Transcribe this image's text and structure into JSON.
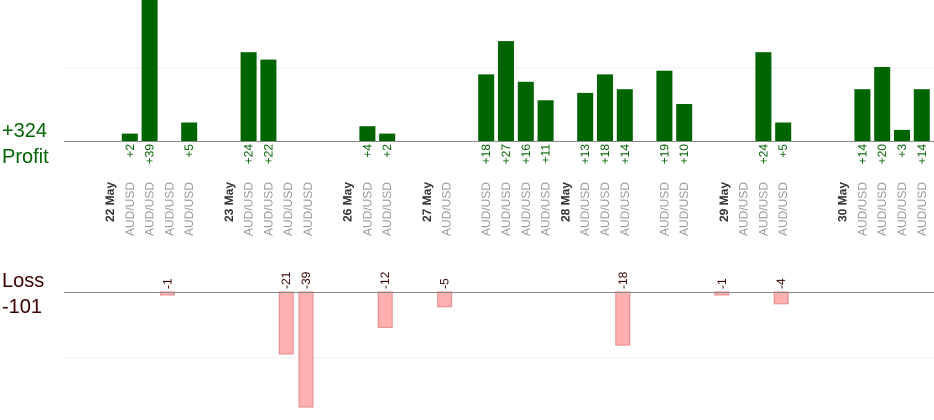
{
  "chart_data": {
    "type": "bar",
    "profit": {
      "label": "Profit",
      "total": "+324",
      "color": "#006400",
      "ylim": [
        0,
        39
      ],
      "bars": [
        {
          "slot": 1,
          "value": 2,
          "label": "+2"
        },
        {
          "slot": 2,
          "value": 39,
          "label": "+39"
        },
        {
          "slot": 4,
          "value": 5,
          "label": "+5"
        },
        {
          "slot": 7,
          "value": 24,
          "label": "+24"
        },
        {
          "slot": 8,
          "value": 22,
          "label": "+22"
        },
        {
          "slot": 13,
          "value": 4,
          "label": "+4"
        },
        {
          "slot": 14,
          "value": 2,
          "label": "+2"
        },
        {
          "slot": 19,
          "value": 18,
          "label": "+18"
        },
        {
          "slot": 20,
          "value": 27,
          "label": "+27"
        },
        {
          "slot": 21,
          "value": 16,
          "label": "+16"
        },
        {
          "slot": 22,
          "value": 11,
          "label": "+11"
        },
        {
          "slot": 24,
          "value": 13,
          "label": "+13"
        },
        {
          "slot": 25,
          "value": 18,
          "label": "+18"
        },
        {
          "slot": 26,
          "value": 14,
          "label": "+14"
        },
        {
          "slot": 28,
          "value": 19,
          "label": "+19"
        },
        {
          "slot": 29,
          "value": 10,
          "label": "+10"
        },
        {
          "slot": 33,
          "value": 24,
          "label": "+24"
        },
        {
          "slot": 34,
          "value": 5,
          "label": "+5"
        },
        {
          "slot": 38,
          "value": 14,
          "label": "+14"
        },
        {
          "slot": 39,
          "value": 20,
          "label": "+20"
        },
        {
          "slot": 40,
          "value": 3,
          "label": "+3"
        },
        {
          "slot": 41,
          "value": 14,
          "label": "+14"
        }
      ]
    },
    "loss": {
      "label": "Loss",
      "total": "-101",
      "color": "#ffb0b0",
      "ylim": [
        -39,
        0
      ],
      "bars": [
        {
          "slot": 3,
          "value": -1,
          "label": "-1"
        },
        {
          "slot": 9,
          "value": -21,
          "label": "-21"
        },
        {
          "slot": 10,
          "value": -39,
          "label": "-39"
        },
        {
          "slot": 14,
          "value": -12,
          "label": "-12"
        },
        {
          "slot": 17,
          "value": -5,
          "label": "-5"
        },
        {
          "slot": 26,
          "value": -18,
          "label": "-18"
        },
        {
          "slot": 31,
          "value": -1,
          "label": "-1"
        },
        {
          "slot": 34,
          "value": -4,
          "label": "-4"
        }
      ]
    },
    "categories": [
      {
        "slot": 0,
        "text": "22 May",
        "kind": "date"
      },
      {
        "slot": 1,
        "text": "AUD/USD",
        "kind": "pair"
      },
      {
        "slot": 2,
        "text": "AUD/USD",
        "kind": "pair"
      },
      {
        "slot": 3,
        "text": "AUD/USD",
        "kind": "pair"
      },
      {
        "slot": 4,
        "text": "AUD/USD",
        "kind": "pair"
      },
      {
        "slot": 6,
        "text": "23 May",
        "kind": "date"
      },
      {
        "slot": 7,
        "text": "AUD/USD",
        "kind": "pair"
      },
      {
        "slot": 8,
        "text": "AUD/USD",
        "kind": "pair"
      },
      {
        "slot": 9,
        "text": "AUD/USD",
        "kind": "pair"
      },
      {
        "slot": 10,
        "text": "AUD/USD",
        "kind": "pair"
      },
      {
        "slot": 12,
        "text": "26 May",
        "kind": "date"
      },
      {
        "slot": 13,
        "text": "AUD/USD",
        "kind": "pair"
      },
      {
        "slot": 14,
        "text": "AUD/USD",
        "kind": "pair"
      },
      {
        "slot": 16,
        "text": "27 May",
        "kind": "date"
      },
      {
        "slot": 17,
        "text": "AUD/USD",
        "kind": "pair"
      },
      {
        "slot": 19,
        "text": "AUD/USD",
        "kind": "pair"
      },
      {
        "slot": 20,
        "text": "AUD/USD",
        "kind": "pair"
      },
      {
        "slot": 21,
        "text": "AUD/USD",
        "kind": "pair"
      },
      {
        "slot": 22,
        "text": "AUD/USD",
        "kind": "pair"
      },
      {
        "slot": 23,
        "text": "28 May",
        "kind": "date"
      },
      {
        "slot": 24,
        "text": "AUD/USD",
        "kind": "pair"
      },
      {
        "slot": 25,
        "text": "AUD/USD",
        "kind": "pair"
      },
      {
        "slot": 26,
        "text": "AUD/USD",
        "kind": "pair"
      },
      {
        "slot": 28,
        "text": "AUD/USD",
        "kind": "pair"
      },
      {
        "slot": 29,
        "text": "AUD/USD",
        "kind": "pair"
      },
      {
        "slot": 31,
        "text": "29 May",
        "kind": "date"
      },
      {
        "slot": 32,
        "text": "AUD/USD",
        "kind": "pair"
      },
      {
        "slot": 33,
        "text": "AUD/USD",
        "kind": "pair"
      },
      {
        "slot": 34,
        "text": "AUD/USD",
        "kind": "pair"
      },
      {
        "slot": 37,
        "text": "30 May",
        "kind": "date"
      },
      {
        "slot": 38,
        "text": "AUD/USD",
        "kind": "pair"
      },
      {
        "slot": 39,
        "text": "AUD/USD",
        "kind": "pair"
      },
      {
        "slot": 40,
        "text": "AUD/USD",
        "kind": "pair"
      },
      {
        "slot": 41,
        "text": "AUD/USD",
        "kind": "pair"
      }
    ],
    "colors": {
      "profit_text": "#006400",
      "loss_text": "#3a0000",
      "axis": "#888888",
      "grid": "#eeeeee"
    },
    "grid": true
  }
}
